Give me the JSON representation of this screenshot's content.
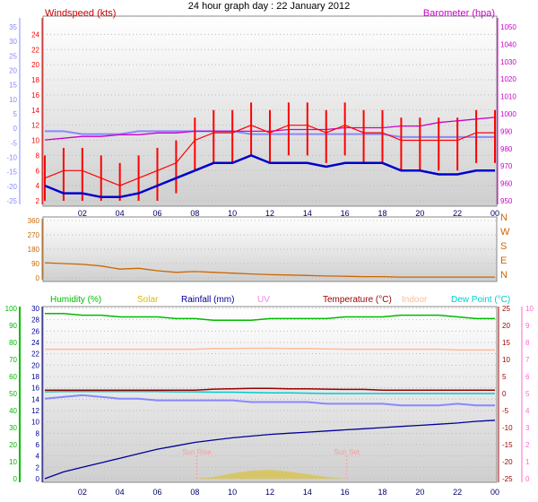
{
  "title": "24 hour graph day : 22 January 2012",
  "x_ticks": [
    "02",
    "04",
    "06",
    "08",
    "10",
    "12",
    "14",
    "16",
    "18",
    "20",
    "22",
    "00"
  ],
  "colors": {
    "wind": "#ff0000",
    "baro": "#cc00cc",
    "temp_left": "#8888ff",
    "dir": "#cc6600",
    "humidity": "#00bb00",
    "solar": "#ddbb00",
    "rain": "#000099",
    "uv": "#ee88ee",
    "temp": "#990000",
    "indoor": "#ffbb99",
    "dewpoint": "#00cccc",
    "pink_axis": "#ff66cc"
  },
  "chart_data": [
    {
      "type": "line",
      "name": "wind-barometer",
      "title": "24 hour graph day : 22 January 2012",
      "left_label": "Windspeed (kts)",
      "right_label": "Barometer (hpa)",
      "wind_ticks": [
        "24",
        "22",
        "20",
        "18",
        "16",
        "14",
        "12",
        "10",
        "8",
        "6",
        "4",
        "2"
      ],
      "baro_ticks": [
        "1050",
        "1040",
        "1030",
        "1020",
        "1010",
        "1000",
        "990",
        "980",
        "970",
        "960",
        "950"
      ],
      "aux_ticks": [
        "35",
        "30",
        "25",
        "20",
        "15",
        "10",
        "5",
        "0",
        "-5",
        "-10",
        "-15",
        "-20",
        "-25"
      ],
      "ylim_wind": [
        2,
        25
      ],
      "ylim_baro": [
        950,
        1050
      ],
      "x_hours": [
        0,
        1,
        2,
        3,
        4,
        5,
        6,
        7,
        8,
        9,
        10,
        11,
        12,
        13,
        14,
        15,
        16,
        17,
        18,
        19,
        20,
        21,
        22,
        23,
        24
      ],
      "series": [
        {
          "key": "wind_gust",
          "values": [
            5,
            6,
            6,
            5,
            4,
            5,
            6,
            7,
            10,
            11,
            11,
            12,
            11,
            12,
            12,
            11,
            12,
            11,
            11,
            10,
            10,
            10,
            10,
            11,
            11
          ]
        },
        {
          "key": "wind_avg",
          "values": [
            4,
            3,
            3,
            2.5,
            2.5,
            3,
            4,
            5,
            6,
            7,
            7,
            8,
            7,
            7,
            7,
            6.5,
            7,
            7,
            7,
            6,
            6,
            5.5,
            5.5,
            6,
            6
          ]
        },
        {
          "key": "barometer",
          "values": [
            985,
            986,
            987,
            987,
            988,
            988,
            989,
            989,
            990,
            990,
            990,
            990,
            990,
            991,
            991,
            991,
            992,
            992,
            992,
            993,
            993,
            995,
            996,
            997,
            998
          ]
        },
        {
          "key": "temperature",
          "values": [
            -1,
            -1,
            -2,
            -2,
            -2,
            -1,
            -1,
            -1,
            -1,
            -1,
            -1,
            -2,
            -2,
            -2,
            -2,
            -2,
            -2,
            -2,
            -2,
            -3,
            -3,
            -3,
            -3,
            -3,
            -3
          ]
        }
      ]
    },
    {
      "type": "scatter",
      "name": "wind-direction",
      "ticks": [
        "360",
        "270",
        "180",
        "90",
        "0"
      ],
      "compass": [
        "N",
        "W",
        "S",
        "E",
        "N"
      ],
      "ylim": [
        0,
        360
      ],
      "x_hours": [
        0,
        1,
        2,
        3,
        4,
        5,
        6,
        7,
        8,
        9,
        10,
        11,
        12,
        13,
        14,
        15,
        16,
        17,
        18,
        19,
        20,
        21,
        22,
        23,
        24
      ],
      "values": [
        95,
        90,
        85,
        75,
        55,
        60,
        45,
        35,
        40,
        35,
        30,
        25,
        20,
        18,
        15,
        12,
        10,
        8,
        8,
        5,
        5,
        5,
        5,
        5,
        5
      ]
    },
    {
      "type": "line",
      "name": "humidity-rain-temperature",
      "legend": [
        "Humidity (%)",
        "Solar",
        "Rainfall (mm)",
        "UV",
        "Temperature (°C)",
        "Indoor",
        "Dew Point (°C)"
      ],
      "humidity_ticks": [
        "100",
        "90",
        "80",
        "70",
        "60",
        "50",
        "40",
        "30",
        "20",
        "10",
        "0"
      ],
      "rain_ticks": [
        "30",
        "28",
        "26",
        "24",
        "22",
        "20",
        "18",
        "16",
        "14",
        "12",
        "10",
        "8",
        "6",
        "4",
        "2",
        "0"
      ],
      "temp_ticks": [
        "25",
        "20",
        "15",
        "10",
        "5",
        "0",
        "-5",
        "-10",
        "-15",
        "-20",
        "-25"
      ],
      "uv_ticks": [
        "10",
        "9",
        "8",
        "7",
        "6",
        "5",
        "4",
        "3",
        "2",
        "1",
        "0"
      ],
      "ylim_humidity": [
        0,
        100
      ],
      "ylim_rain": [
        0,
        30
      ],
      "ylim_temp": [
        -25,
        25
      ],
      "sun_rise": "Sun Rise",
      "sun_set": "Sun Set",
      "sun_rise_hour": 8.1,
      "sun_set_hour": 16.1,
      "x_hours": [
        0,
        1,
        2,
        3,
        4,
        5,
        6,
        7,
        8,
        9,
        10,
        11,
        12,
        13,
        14,
        15,
        16,
        17,
        18,
        19,
        20,
        21,
        22,
        23,
        24
      ],
      "series": [
        {
          "key": "humidity",
          "values": [
            97,
            97,
            96,
            96,
            95,
            95,
            95,
            94,
            94,
            93,
            93,
            93,
            94,
            94,
            94,
            94,
            95,
            95,
            95,
            96,
            96,
            96,
            95,
            94,
            94
          ]
        },
        {
          "key": "rainfall",
          "values": [
            0,
            1.2,
            2,
            2.8,
            3.6,
            4.4,
            5.2,
            5.8,
            6.4,
            6.8,
            7.2,
            7.5,
            7.8,
            8,
            8.2,
            8.4,
            8.6,
            8.8,
            9,
            9.2,
            9.4,
            9.6,
            9.8,
            10.1,
            10.3
          ]
        },
        {
          "key": "indoor",
          "values": [
            13,
            13,
            13,
            13,
            13,
            13,
            13,
            13,
            13,
            13.2,
            13.2,
            13.3,
            13.3,
            13.2,
            13.2,
            13.1,
            13,
            13,
            13,
            13,
            13,
            13,
            12.8,
            12.8,
            12.8
          ]
        },
        {
          "key": "temperature",
          "values": [
            1,
            1,
            1,
            1,
            1,
            1,
            1,
            1,
            1,
            1.3,
            1.4,
            1.5,
            1.5,
            1.4,
            1.4,
            1.3,
            1.2,
            1.2,
            1,
            1,
            1,
            1,
            1,
            1,
            1
          ]
        },
        {
          "key": "dewpoint",
          "values": [
            0.5,
            0.6,
            0.6,
            0.6,
            0.6,
            0.6,
            0.6,
            0.5,
            0.5,
            0.4,
            0.4,
            0.3,
            0.2,
            0.2,
            0.1,
            0,
            0,
            0,
            0,
            0,
            0,
            0,
            0,
            0,
            0
          ]
        },
        {
          "key": "apparent",
          "values": [
            -1.5,
            -1,
            -0.5,
            -1,
            -1.5,
            -1.5,
            -2,
            -2,
            -2,
            -2,
            -2,
            -2.5,
            -2.5,
            -2.5,
            -2.5,
            -3,
            -3,
            -3,
            -3,
            -3.5,
            -3.5,
            -3.5,
            -3,
            -3.5,
            -3.5
          ]
        },
        {
          "key": "solar",
          "values": [
            0,
            0,
            0,
            0,
            0,
            0,
            0,
            0,
            0,
            0.2,
            0.6,
            0.9,
            1,
            0.8,
            0.5,
            0.2,
            0,
            0,
            0,
            0,
            0,
            0,
            0,
            0,
            0
          ]
        }
      ]
    }
  ]
}
